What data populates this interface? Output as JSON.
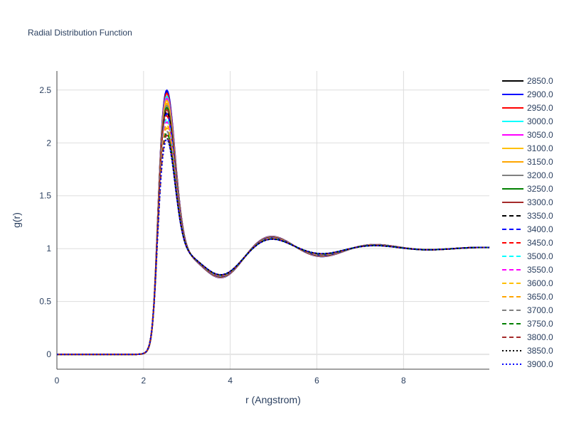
{
  "chart_data": {
    "type": "line",
    "title": "Radial Distribution Function",
    "xlabel": "r (Angstrom)",
    "ylabel": "g(r)",
    "xlim": [
      0,
      9.98
    ],
    "ylim": [
      -0.14,
      2.68
    ],
    "x_ticks": [
      "0",
      "2",
      "4",
      "6",
      "8"
    ],
    "y_ticks": [
      "0",
      "0.5",
      "1",
      "1.5",
      "2",
      "2.5"
    ],
    "grid": true,
    "legend_position": "right",
    "series": [
      {
        "name": "2850.0",
        "color": "#000000",
        "dash": "solid",
        "peak": 2.54
      },
      {
        "name": "2900.0",
        "color": "#0000ff",
        "dash": "solid",
        "peak": 2.55
      },
      {
        "name": "2950.0",
        "color": "#ff0000",
        "dash": "solid",
        "peak": 2.52
      },
      {
        "name": "3000.0",
        "color": "#00ffff",
        "dash": "solid",
        "peak": 2.49
      },
      {
        "name": "3050.0",
        "color": "#ff00ff",
        "dash": "solid",
        "peak": 2.47
      },
      {
        "name": "3100.0",
        "color": "#ffc000",
        "dash": "solid",
        "peak": 2.45
      },
      {
        "name": "3150.0",
        "color": "#ffa500",
        "dash": "solid",
        "peak": 2.42
      },
      {
        "name": "3200.0",
        "color": "#808080",
        "dash": "solid",
        "peak": 2.4
      },
      {
        "name": "3250.0",
        "color": "#008000",
        "dash": "solid",
        "peak": 2.38
      },
      {
        "name": "3300.0",
        "color": "#a52a2a",
        "dash": "solid",
        "peak": 2.36
      },
      {
        "name": "3350.0",
        "color": "#000000",
        "dash": "dash",
        "peak": 2.34
      },
      {
        "name": "3400.0",
        "color": "#0000ff",
        "dash": "dash",
        "peak": 2.32
      },
      {
        "name": "3450.0",
        "color": "#ff0000",
        "dash": "dash",
        "peak": 2.3
      },
      {
        "name": "3500.0",
        "color": "#00ffff",
        "dash": "dash",
        "peak": 2.27
      },
      {
        "name": "3550.0",
        "color": "#ff00ff",
        "dash": "dash",
        "peak": 2.24
      },
      {
        "name": "3600.0",
        "color": "#ffc000",
        "dash": "dash",
        "peak": 2.21
      },
      {
        "name": "3650.0",
        "color": "#ffa500",
        "dash": "dash",
        "peak": 2.18
      },
      {
        "name": "3700.0",
        "color": "#808080",
        "dash": "dash",
        "peak": 2.15
      },
      {
        "name": "3750.0",
        "color": "#008000",
        "dash": "dash",
        "peak": 2.13
      },
      {
        "name": "3800.0",
        "color": "#a52a2a",
        "dash": "dash",
        "peak": 2.11
      },
      {
        "name": "3850.0",
        "color": "#000000",
        "dash": "dot",
        "peak": 2.08
      },
      {
        "name": "3900.0",
        "color": "#0000ff",
        "dash": "dot",
        "peak": 2.07
      }
    ]
  }
}
